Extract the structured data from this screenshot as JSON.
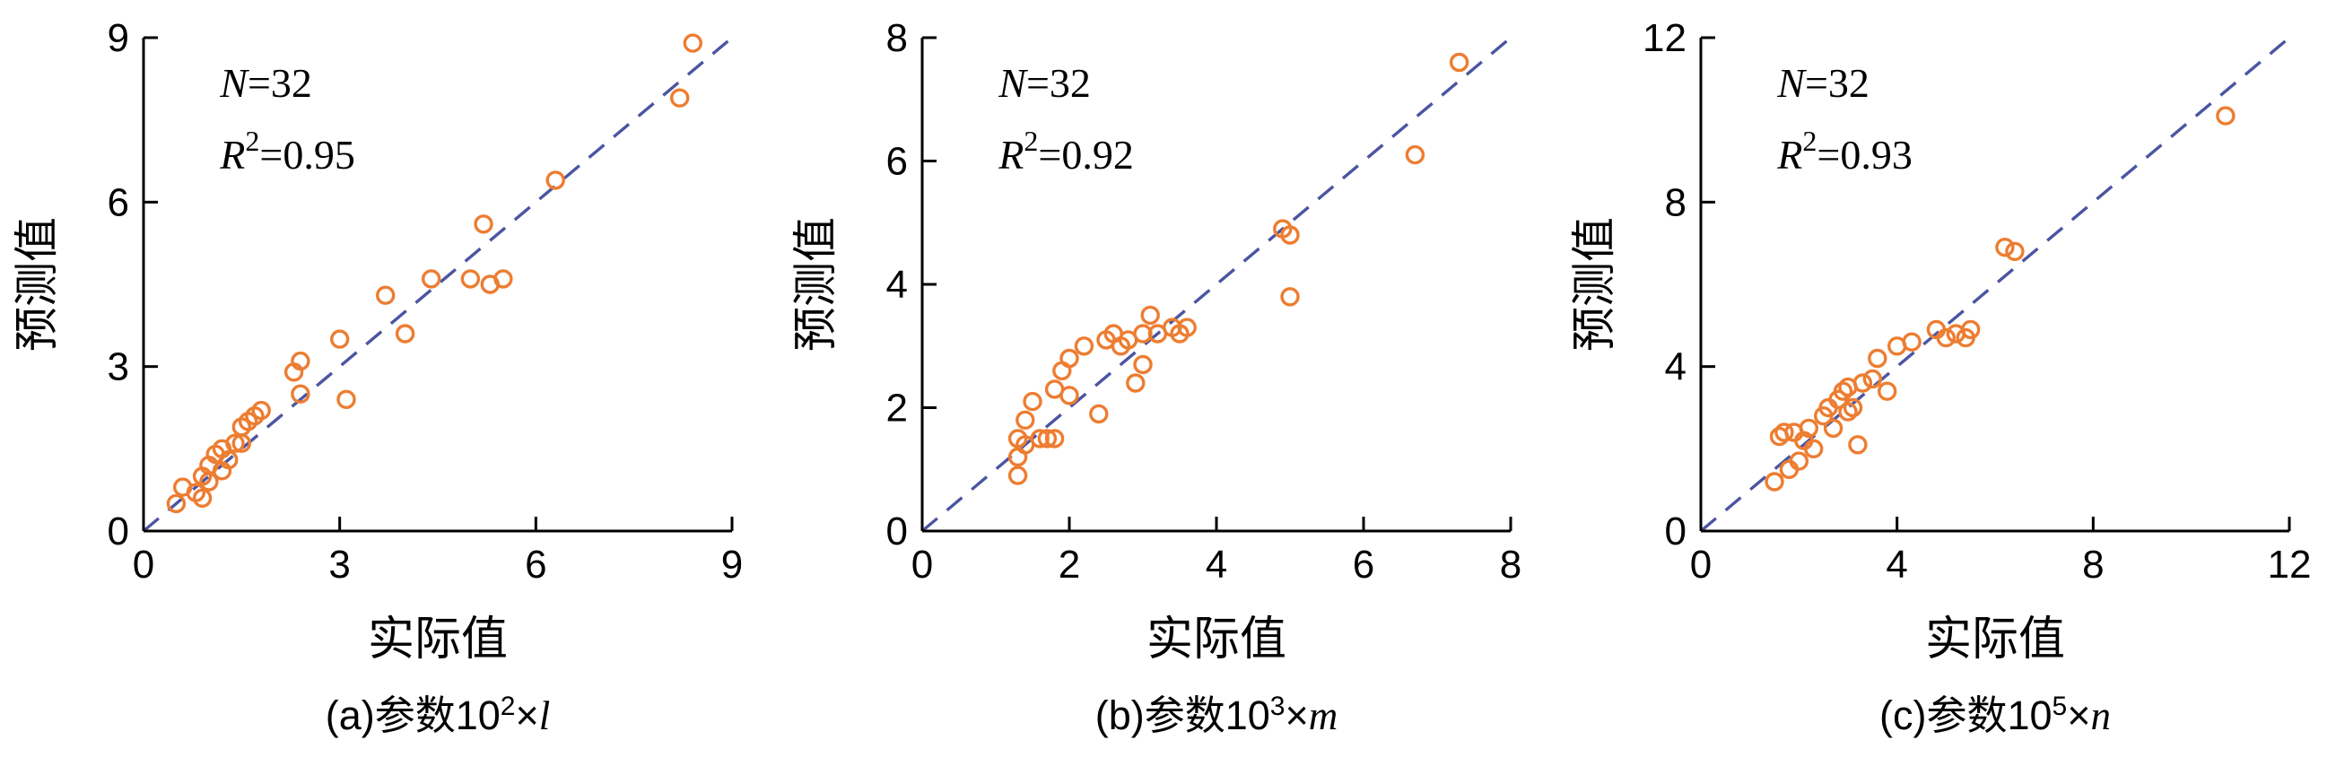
{
  "style": {
    "marker_color": "#ED7D31",
    "line_color": "#4B55A1",
    "axis_color": "#000000",
    "text_color": "#000000",
    "background": "#FFFFFF"
  },
  "chart_data": [
    {
      "type": "scatter",
      "panel": "a",
      "xlabel": "实际值",
      "ylabel": "预测值",
      "xlim": [
        0,
        9
      ],
      "ylim": [
        0,
        9
      ],
      "xticks": [
        0,
        3,
        6,
        9
      ],
      "yticks": [
        0,
        3,
        6,
        9
      ],
      "grid": false,
      "legend": null,
      "sample_size": 32,
      "r_squared": 0.95,
      "annotation": {
        "n_prefix": "N",
        "n_value": "=32",
        "r_prefix": "R",
        "r_sup": "2",
        "r_value": "=0.95"
      },
      "caption": {
        "prefix": "(a)参数10",
        "power": "2",
        "times": "×",
        "variable": "l"
      },
      "reference_line": {
        "style": "dashed",
        "from": [
          0,
          0
        ],
        "to": [
          9,
          9
        ]
      },
      "points": [
        [
          0.5,
          0.5
        ],
        [
          0.6,
          0.8
        ],
        [
          0.8,
          0.7
        ],
        [
          0.9,
          1.0
        ],
        [
          0.9,
          0.6
        ],
        [
          1.0,
          1.2
        ],
        [
          1.0,
          0.9
        ],
        [
          1.1,
          1.4
        ],
        [
          1.2,
          1.1
        ],
        [
          1.2,
          1.5
        ],
        [
          1.3,
          1.3
        ],
        [
          1.4,
          1.6
        ],
        [
          1.5,
          1.9
        ],
        [
          1.5,
          1.6
        ],
        [
          1.6,
          2.0
        ],
        [
          1.7,
          2.1
        ],
        [
          1.8,
          2.2
        ],
        [
          2.3,
          2.9
        ],
        [
          2.4,
          2.5
        ],
        [
          2.4,
          3.1
        ],
        [
          3.0,
          3.5
        ],
        [
          3.1,
          2.4
        ],
        [
          3.7,
          4.3
        ],
        [
          4.0,
          3.6
        ],
        [
          4.4,
          4.6
        ],
        [
          5.0,
          4.6
        ],
        [
          5.2,
          5.6
        ],
        [
          5.3,
          4.5
        ],
        [
          5.5,
          4.6
        ],
        [
          6.3,
          6.4
        ],
        [
          8.2,
          7.9
        ],
        [
          8.4,
          8.9
        ]
      ]
    },
    {
      "type": "scatter",
      "panel": "b",
      "xlabel": "实际值",
      "ylabel": "预测值",
      "xlim": [
        0,
        8
      ],
      "ylim": [
        0,
        8
      ],
      "xticks": [
        0,
        2,
        4,
        6,
        8
      ],
      "yticks": [
        0,
        2,
        4,
        6,
        8
      ],
      "grid": false,
      "legend": null,
      "sample_size": 32,
      "r_squared": 0.92,
      "annotation": {
        "n_prefix": "N",
        "n_value": "=32",
        "r_prefix": "R",
        "r_sup": "2",
        "r_value": "=0.92"
      },
      "caption": {
        "prefix": "(b)参数10",
        "power": "3",
        "times": "×",
        "variable": "m"
      },
      "reference_line": {
        "style": "dashed",
        "from": [
          0,
          0
        ],
        "to": [
          8,
          8
        ]
      },
      "points": [
        [
          1.3,
          0.9
        ],
        [
          1.3,
          1.2
        ],
        [
          1.3,
          1.5
        ],
        [
          1.4,
          1.4
        ],
        [
          1.4,
          1.8
        ],
        [
          1.5,
          2.1
        ],
        [
          1.6,
          1.5
        ],
        [
          1.7,
          1.5
        ],
        [
          1.8,
          1.5
        ],
        [
          1.8,
          2.3
        ],
        [
          1.9,
          2.6
        ],
        [
          2.0,
          2.8
        ],
        [
          2.0,
          2.2
        ],
        [
          2.2,
          3.0
        ],
        [
          2.4,
          1.9
        ],
        [
          2.5,
          3.1
        ],
        [
          2.6,
          3.2
        ],
        [
          2.7,
          3.0
        ],
        [
          2.8,
          3.1
        ],
        [
          2.9,
          2.4
        ],
        [
          3.0,
          3.2
        ],
        [
          3.0,
          2.7
        ],
        [
          3.1,
          3.5
        ],
        [
          3.2,
          3.2
        ],
        [
          3.4,
          3.3
        ],
        [
          3.5,
          3.2
        ],
        [
          3.6,
          3.3
        ],
        [
          4.9,
          4.9
        ],
        [
          5.0,
          4.8
        ],
        [
          5.0,
          3.8
        ],
        [
          6.7,
          6.1
        ],
        [
          7.3,
          7.6
        ]
      ]
    },
    {
      "type": "scatter",
      "panel": "c",
      "xlabel": "实际值",
      "ylabel": "预测值",
      "xlim": [
        0,
        12
      ],
      "ylim": [
        0,
        12
      ],
      "xticks": [
        0,
        4,
        8,
        12
      ],
      "yticks": [
        0,
        4,
        8,
        12
      ],
      "grid": false,
      "legend": null,
      "sample_size": 32,
      "r_squared": 0.93,
      "annotation": {
        "n_prefix": "N",
        "n_value": "=32",
        "r_prefix": "R",
        "r_sup": "2",
        "r_value": "=0.93"
      },
      "caption": {
        "prefix": "(c)参数10",
        "power": "5",
        "times": "×",
        "variable": "n"
      },
      "reference_line": {
        "style": "dashed",
        "from": [
          0,
          0
        ],
        "to": [
          12,
          12
        ]
      },
      "points": [
        [
          1.5,
          1.2
        ],
        [
          1.6,
          2.3
        ],
        [
          1.7,
          2.4
        ],
        [
          1.8,
          1.5
        ],
        [
          1.9,
          2.4
        ],
        [
          2.0,
          1.7
        ],
        [
          2.1,
          2.2
        ],
        [
          2.2,
          2.5
        ],
        [
          2.3,
          2.0
        ],
        [
          2.5,
          2.8
        ],
        [
          2.6,
          3.0
        ],
        [
          2.7,
          2.5
        ],
        [
          2.8,
          3.2
        ],
        [
          2.9,
          3.4
        ],
        [
          3.0,
          2.9
        ],
        [
          3.0,
          3.5
        ],
        [
          3.1,
          3.0
        ],
        [
          3.2,
          2.1
        ],
        [
          3.3,
          3.6
        ],
        [
          3.5,
          3.7
        ],
        [
          3.6,
          4.2
        ],
        [
          3.8,
          3.4
        ],
        [
          4.0,
          4.5
        ],
        [
          4.3,
          4.6
        ],
        [
          4.8,
          4.9
        ],
        [
          5.0,
          4.7
        ],
        [
          5.2,
          4.8
        ],
        [
          5.4,
          4.7
        ],
        [
          5.5,
          4.9
        ],
        [
          6.2,
          6.9
        ],
        [
          6.4,
          6.8
        ],
        [
          10.7,
          10.1
        ]
      ]
    }
  ]
}
